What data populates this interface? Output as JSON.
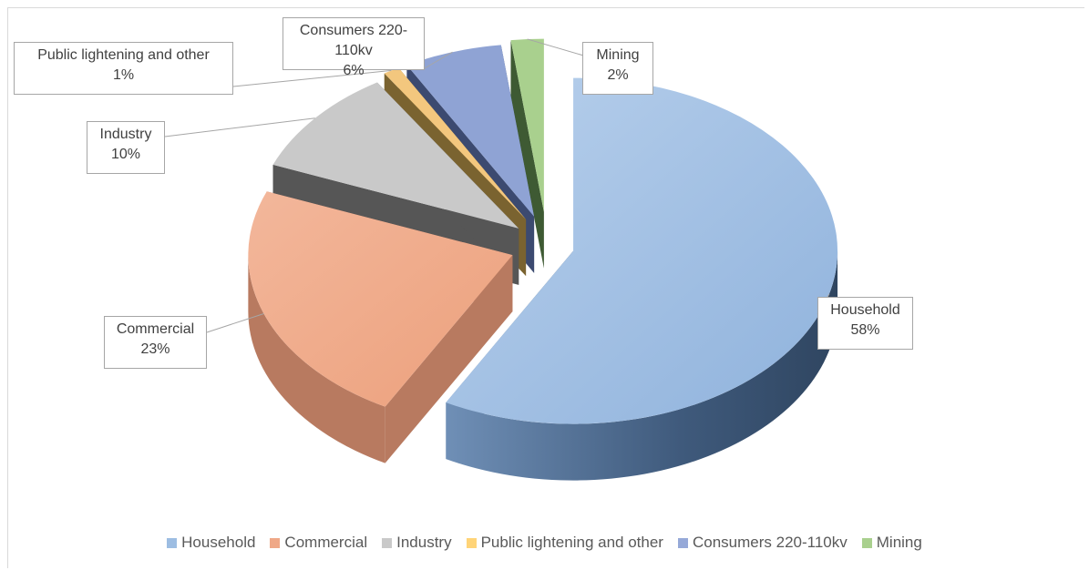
{
  "chart_data": {
    "type": "pie",
    "title": "",
    "style": "3d-exploded",
    "legend_position": "bottom",
    "slices": [
      {
        "name": "Household",
        "value": 58,
        "label": "58%",
        "color": "#9dbde2"
      },
      {
        "name": "Commercial",
        "value": 23,
        "label": "23%",
        "color": "#efa887"
      },
      {
        "name": "Industry",
        "value": 10,
        "label": "10%",
        "color": "#c9c9c9"
      },
      {
        "name": "Public lightening and other",
        "value": 1,
        "label": "1%",
        "color": "#ffd478"
      },
      {
        "name": "Consumers 220-110kv",
        "value": 6,
        "label": "6%",
        "color": "#96a9d8"
      },
      {
        "name": "Mining",
        "value": 2,
        "label": "2%",
        "color": "#a9d08e"
      }
    ]
  }
}
